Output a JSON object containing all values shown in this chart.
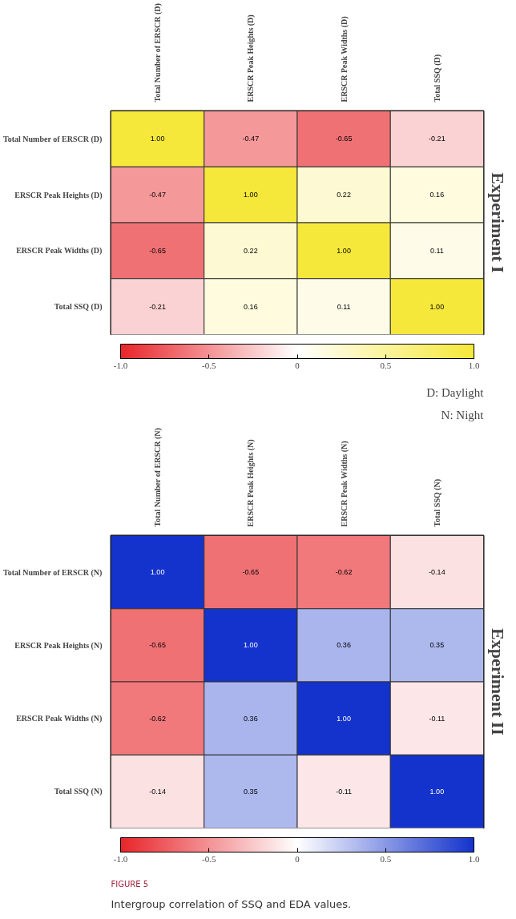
{
  "chart_data": [
    {
      "type": "heatmap",
      "title": "Experiment I",
      "categories": [
        "Total Number of ERSCR (D)",
        "ERSCR Peak Heights (D)",
        "ERSCR Peak Widths (D)",
        "Total SSQ (D)"
      ],
      "y_categories": [
        "Total Number of ERSCR (D)",
        "ERSCR Peak Heights (D)",
        "ERSCR Peak Widths (D)",
        "Total SSQ (D)"
      ],
      "cells": [
        [
          1.0,
          -0.47,
          -0.65,
          -0.21
        ],
        [
          -0.47,
          1.0,
          0.22,
          0.16
        ],
        [
          -0.65,
          0.22,
          1.0,
          0.11
        ],
        [
          -0.21,
          0.16,
          0.11,
          1.0
        ]
      ],
      "cell_labels": [
        [
          "1.00",
          "-0.47",
          "-0.65",
          "-0.21"
        ],
        [
          "-0.47",
          "1.00",
          "0.22",
          "0.16"
        ],
        [
          "-0.65",
          "0.22",
          "1.00",
          "0.11"
        ],
        [
          "-0.21",
          "0.16",
          "0.11",
          "1.00"
        ]
      ],
      "colors": [
        "#e8262b",
        "#ffffff",
        "#f6e83a"
      ],
      "clim": [
        -1,
        1
      ],
      "cticks": [
        {
          "value": -1,
          "label": "-1.0"
        },
        {
          "value": -0.5,
          "label": "-0.5"
        },
        0,
        0.5,
        {
          "value": 1,
          "label": "1.0"
        }
      ],
      "annotations": [
        "D: Daylight",
        "N: Night"
      ]
    },
    {
      "type": "heatmap",
      "title": "Experiment II",
      "categories": [
        "Total Number of ERSCR (N)",
        "ERSCR Peak Heights (N)",
        "ERSCR Peak Widths (N)",
        "Total SSQ (N)"
      ],
      "y_categories": [
        "Total Number of ERSCR (N)",
        "ERSCR Peak Heights (N)",
        "ERSCR Peak Widths (N)",
        "Total SSQ (N)"
      ],
      "cells": [
        [
          1.0,
          -0.65,
          -0.62,
          -0.14
        ],
        [
          -0.65,
          1.0,
          0.36,
          0.35
        ],
        [
          -0.62,
          0.36,
          1.0,
          -0.11
        ],
        [
          -0.14,
          0.35,
          -0.11,
          1.0
        ]
      ],
      "cell_labels": [
        [
          "1.00",
          "-0.65",
          "-0.62",
          "-0.14"
        ],
        [
          "-0.65",
          "1.00",
          "0.36",
          "0.35"
        ],
        [
          "-0.62",
          "0.36",
          "1.00",
          "-0.11"
        ],
        [
          "-0.14",
          "0.35",
          "-0.11",
          "1.00"
        ]
      ],
      "colors": [
        "#e8262b",
        "#ffffff",
        "#1433cc"
      ],
      "clim": [
        -1,
        1
      ],
      "cticks": [
        {
          "value": -1,
          "label": "-1.0"
        },
        {
          "value": -0.5,
          "label": "-0.5"
        },
        0,
        0.5,
        {
          "value": 1,
          "label": "1.0"
        }
      ],
      "annotations": [
        "FIGURE 5",
        "Intergroup correlation of SSQ and EDA values."
      ]
    }
  ]
}
